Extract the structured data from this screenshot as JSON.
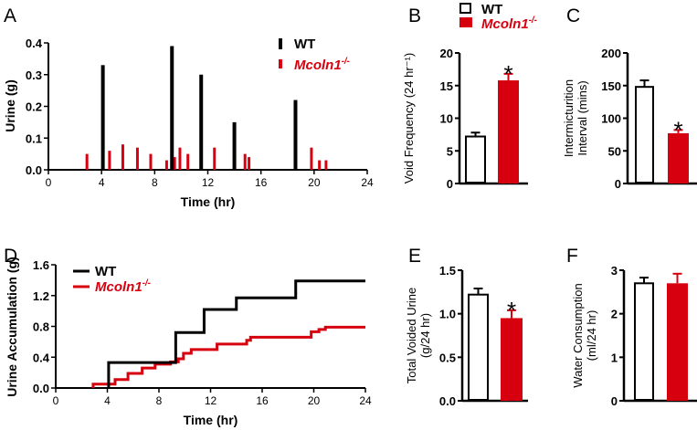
{
  "colors": {
    "wt": "#000000",
    "ko": "#d7000f"
  },
  "legend": {
    "wt": "WT",
    "ko_base": "Mcoln1",
    "ko_sup": "-/-"
  },
  "chart_data": [
    {
      "panel": "A",
      "type": "bar",
      "xlabel": "Time (hr)",
      "ylabel": "Urine (g)",
      "xlim": [
        0,
        24
      ],
      "ylim": [
        0,
        0.4
      ],
      "xticks": [
        0,
        4,
        8,
        12,
        16,
        20,
        24
      ],
      "yticks": [
        "0.0",
        "0.1",
        "0.2",
        "0.3",
        "0.4"
      ],
      "legend_position": "top-right",
      "series": [
        {
          "name": "WT",
          "x": [
            4.1,
            9.3,
            11.5,
            14.0,
            18.6
          ],
          "values": [
            0.33,
            0.39,
            0.3,
            0.15,
            0.22
          ]
        },
        {
          "name": "Mcoln1-/-",
          "x": [
            2.9,
            4.6,
            5.6,
            6.7,
            7.7,
            8.9,
            9.5,
            9.9,
            10.5,
            12.5,
            14.8,
            15.1,
            19.8,
            20.4,
            20.9
          ],
          "values": [
            0.05,
            0.06,
            0.08,
            0.07,
            0.05,
            0.03,
            0.04,
            0.07,
            0.05,
            0.07,
            0.05,
            0.04,
            0.07,
            0.03,
            0.03
          ]
        }
      ]
    },
    {
      "panel": "B",
      "type": "bar",
      "ylabel": "Void Frequency (24 hr⁻¹)",
      "ylim": [
        0,
        20
      ],
      "yticks": [
        "0",
        "5",
        "10",
        "15",
        "20"
      ],
      "categories": [
        "WT",
        "Mcoln1-/-"
      ],
      "values": [
        7.2,
        15.8
      ],
      "errors": [
        0.6,
        1.0
      ],
      "significance": [
        "",
        "*"
      ]
    },
    {
      "panel": "C",
      "type": "bar",
      "ylabel": [
        "Intermicturition",
        "Interval (mins)"
      ],
      "ylim": [
        0,
        200
      ],
      "yticks": [
        "0",
        "50",
        "100",
        "150",
        "200"
      ],
      "categories": [
        "WT",
        "Mcoln1-/-"
      ],
      "values": [
        148,
        77
      ],
      "errors": [
        10,
        5
      ],
      "significance": [
        "",
        "*"
      ]
    },
    {
      "panel": "D",
      "type": "line",
      "xlabel": "Time (hr)",
      "ylabel": "Urine Accumulation (g)",
      "xlim": [
        0,
        24
      ],
      "ylim": [
        0,
        1.6
      ],
      "xticks": [
        0,
        4,
        8,
        12,
        16,
        20,
        24
      ],
      "yticks": [
        "0.0",
        "0.4",
        "0.8",
        "1.2",
        "1.6"
      ],
      "legend_position": "top-left",
      "note": "cumulative step series of panel A events, extending to 24 hr"
    },
    {
      "panel": "E",
      "type": "bar",
      "ylabel": [
        "Total Voided Urine",
        "(g/24 hr)"
      ],
      "ylim": [
        0,
        1.5
      ],
      "yticks": [
        "0.0",
        "0.5",
        "1.0",
        "1.5"
      ],
      "categories": [
        "WT",
        "Mcoln1-/-"
      ],
      "values": [
        1.22,
        0.95
      ],
      "errors": [
        0.07,
        0.09
      ],
      "significance": [
        "",
        "*"
      ]
    },
    {
      "panel": "F",
      "type": "bar",
      "ylabel": [
        "Water Consumption",
        "(ml/24 hr)"
      ],
      "ylim": [
        0,
        3
      ],
      "yticks": [
        "0",
        "1",
        "2",
        "3"
      ],
      "categories": [
        "WT",
        "Mcoln1-/-"
      ],
      "values": [
        2.7,
        2.7
      ],
      "errors": [
        0.13,
        0.22
      ],
      "significance": [
        "",
        ""
      ]
    }
  ]
}
